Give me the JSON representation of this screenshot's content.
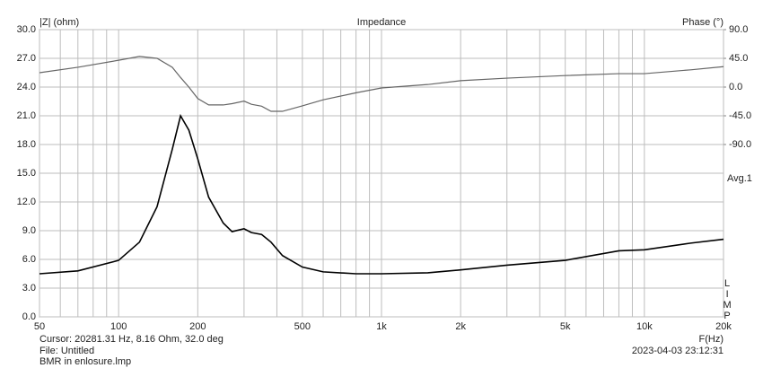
{
  "chart_data": {
    "type": "line",
    "title": "Impedance",
    "y_label": "|Z| (ohm)",
    "y2_label": "Phase (°)",
    "x_label": "F(Hz)",
    "annotation": "Avg.1",
    "side_label": "LIMP",
    "cursor": "Cursor: 20281.31 Hz, 8.16 Ohm, 32.0 deg",
    "file": "File: Untitled",
    "filename": "BMR in enlosure.lmp",
    "timestamp": "2023-04-03 23:12:31",
    "xlog": true,
    "grid": true,
    "xlim": [
      50,
      20000
    ],
    "xticks": [
      50,
      100,
      200,
      500,
      {
        "value": 1000,
        "label": "1k"
      },
      {
        "value": 2000,
        "label": "2k"
      },
      {
        "value": 5000,
        "label": "5k"
      },
      {
        "value": 10000,
        "label": "10k"
      },
      {
        "value": 20000,
        "label": "20k"
      }
    ],
    "xgrid_minor": [
      60,
      70,
      80,
      90,
      300,
      400,
      600,
      700,
      800,
      900,
      3000,
      4000,
      6000,
      7000,
      8000,
      9000
    ],
    "ylim": [
      0,
      30
    ],
    "yticks": [
      {
        "value": 0,
        "label": "0.0"
      },
      {
        "value": 3,
        "label": "3.0"
      },
      {
        "value": 6,
        "label": "6.0"
      },
      {
        "value": 9,
        "label": "9.0"
      },
      {
        "value": 12,
        "label": "12.0"
      },
      {
        "value": 15,
        "label": "15.0"
      },
      {
        "value": 18,
        "label": "18.0"
      },
      {
        "value": 21,
        "label": "21.0"
      },
      {
        "value": 24,
        "label": "24.0"
      },
      {
        "value": 27,
        "label": "27.0"
      },
      {
        "value": 30,
        "label": "30.0"
      }
    ],
    "y2lim": [
      -360,
      90
    ],
    "y2ticks": [
      {
        "value": 90,
        "label": "90.0"
      },
      {
        "value": 45,
        "label": "45.0"
      },
      {
        "value": 0,
        "label": "0.0"
      },
      {
        "value": -45,
        "label": "-45.0"
      },
      {
        "value": -90,
        "label": "-90.0"
      }
    ],
    "x": [
      50,
      70,
      100,
      120,
      140,
      160,
      172,
      185,
      200,
      220,
      250,
      270,
      300,
      320,
      350,
      380,
      420,
      500,
      600,
      800,
      1000,
      1500,
      2000,
      3000,
      5000,
      8000,
      10000,
      15000,
      20000
    ],
    "series": [
      {
        "color": "#000000",
        "values": [
          4.5,
          4.8,
          5.9,
          7.8,
          11.5,
          17.5,
          21.0,
          19.5,
          16.5,
          12.5,
          9.8,
          8.9,
          9.2,
          8.8,
          8.6,
          7.8,
          6.4,
          5.2,
          4.7,
          4.5,
          4.5,
          4.6,
          4.9,
          5.4,
          5.9,
          6.9,
          7.0,
          7.7,
          8.1
        ]
      },
      {
        "color": "#666666",
        "axis": "y2",
        "values": [
          22.5,
          31,
          42,
          48,
          45,
          31,
          15,
          0,
          -18,
          -28,
          -28,
          -26,
          -22,
          -27,
          -30,
          -38,
          -38,
          -29.5,
          -20,
          -9,
          -1.4,
          4,
          10,
          14,
          18,
          21,
          21,
          27,
          32
        ]
      }
    ]
  }
}
